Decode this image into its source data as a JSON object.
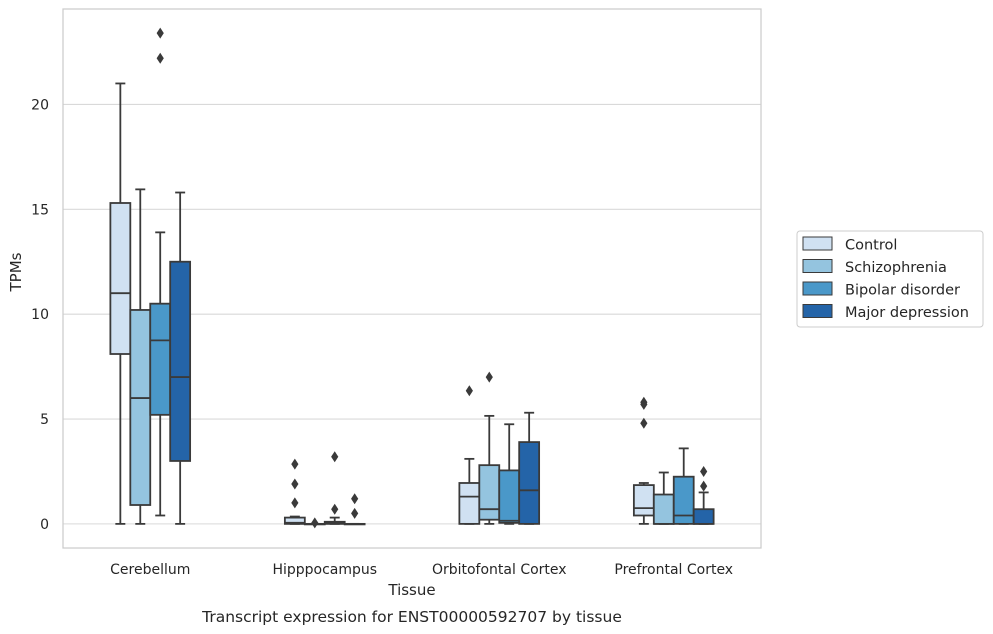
{
  "chart_data": {
    "type": "box",
    "caption": "Transcript expression for ENST00000592707 by tissue",
    "xlabel": "Tissue",
    "ylabel": "TPMs",
    "ylim": [
      -1.15,
      24.55
    ],
    "yticks": [
      0,
      5,
      10,
      15,
      20
    ],
    "grid": "horizontal",
    "legend_position": "right",
    "categories": [
      "Cerebellum",
      "Hipppocampus",
      "Orbitofontal Cortex",
      "Prefrontal Cortex"
    ],
    "series": [
      {
        "name": "Control",
        "color": "#d0e1f2",
        "boxes": [
          {
            "min": 0,
            "q1": 8.1,
            "median": 11.0,
            "q3": 15.3,
            "max": 21.0,
            "outliers": []
          },
          {
            "min": 0,
            "q1": 0,
            "median": 0.05,
            "q3": 0.3,
            "max": 0.35,
            "outliers": [
              1.0,
              1.9,
              2.85
            ]
          },
          {
            "min": 0,
            "q1": 0,
            "median": 1.3,
            "q3": 1.95,
            "max": 3.1,
            "outliers": [
              6.35
            ]
          },
          {
            "min": 0,
            "q1": 0.4,
            "median": 0.75,
            "q3": 1.85,
            "max": 1.95,
            "outliers": [
              4.8,
              5.7,
              5.8
            ]
          }
        ]
      },
      {
        "name": "Schizophrenia",
        "color": "#94c4df",
        "boxes": [
          {
            "min": 0,
            "q1": 0.9,
            "median": 6.0,
            "q3": 10.2,
            "max": 15.95,
            "outliers": []
          },
          {
            "min": 0,
            "q1": 0,
            "median": 0,
            "q3": 0,
            "max": 0,
            "outliers": [
              0.05
            ]
          },
          {
            "min": 0,
            "q1": 0.2,
            "median": 0.7,
            "q3": 2.8,
            "max": 5.15,
            "outliers": [
              7.0
            ]
          },
          {
            "min": 0,
            "q1": 0,
            "median": 0,
            "q3": 1.4,
            "max": 2.45,
            "outliers": []
          }
        ]
      },
      {
        "name": "Bipolar disorder",
        "color": "#4a98c9",
        "boxes": [
          {
            "min": 0.4,
            "q1": 5.2,
            "median": 8.75,
            "q3": 10.5,
            "max": 13.9,
            "outliers": [
              22.2,
              23.4
            ]
          },
          {
            "min": 0,
            "q1": 0,
            "median": 0.05,
            "q3": 0.1,
            "max": 0.3,
            "outliers": [
              0.7,
              3.2
            ]
          },
          {
            "min": 0,
            "q1": 0.05,
            "median": 0.15,
            "q3": 2.55,
            "max": 4.75,
            "outliers": []
          },
          {
            "min": 0,
            "q1": 0,
            "median": 0.4,
            "q3": 2.25,
            "max": 3.6,
            "outliers": []
          }
        ]
      },
      {
        "name": "Major depression",
        "color": "#2464a8",
        "boxes": [
          {
            "min": 0,
            "q1": 3.0,
            "median": 7.0,
            "q3": 12.5,
            "max": 15.8,
            "outliers": []
          },
          {
            "min": 0,
            "q1": 0,
            "median": 0,
            "q3": 0,
            "max": 0,
            "outliers": [
              0.5,
              1.2
            ]
          },
          {
            "min": 0,
            "q1": 0,
            "median": 1.6,
            "q3": 3.9,
            "max": 5.3,
            "outliers": []
          },
          {
            "min": 0,
            "q1": 0,
            "median": 0,
            "q3": 0.7,
            "max": 1.5,
            "outliers": [
              1.8,
              2.5
            ]
          }
        ]
      }
    ]
  }
}
